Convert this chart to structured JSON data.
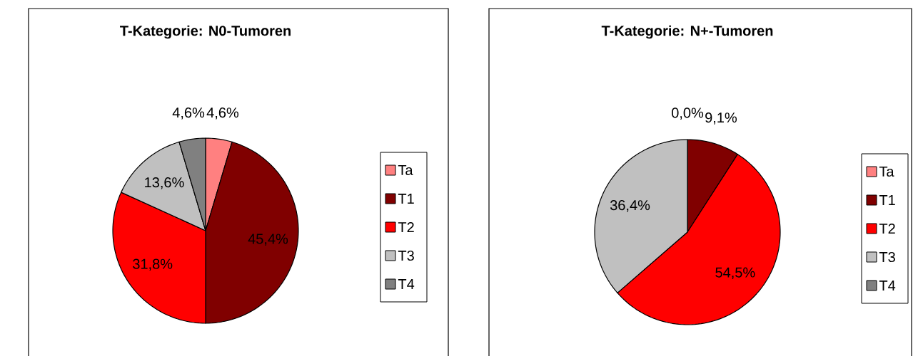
{
  "chart_data": [
    {
      "type": "pie",
      "title": "T-Kategorie: N0-Tumoren",
      "categories": [
        "Ta",
        "T1",
        "T2",
        "T3",
        "T4"
      ],
      "values": [
        4.6,
        45.4,
        31.8,
        13.6,
        4.6
      ],
      "value_labels": [
        "4,6%",
        "45,4%",
        "31,8%",
        "13,6%",
        "4,6%"
      ],
      "colors": [
        "#ff8080",
        "#800000",
        "#ff0000",
        "#c0c0c0",
        "#808080"
      ],
      "legend": "right"
    },
    {
      "type": "pie",
      "title": "T-Kategorie: N+-Tumoren",
      "categories": [
        "Ta",
        "T1",
        "T2",
        "T3",
        "T4"
      ],
      "values": [
        0.0,
        9.1,
        54.5,
        36.4,
        0.0
      ],
      "value_labels": [
        "0,0%",
        "9,1%",
        "54,5%",
        "36,4%",
        null
      ],
      "colors": [
        "#ff8080",
        "#800000",
        "#ff0000",
        "#c0c0c0",
        "#808080"
      ],
      "legend": "right"
    }
  ]
}
